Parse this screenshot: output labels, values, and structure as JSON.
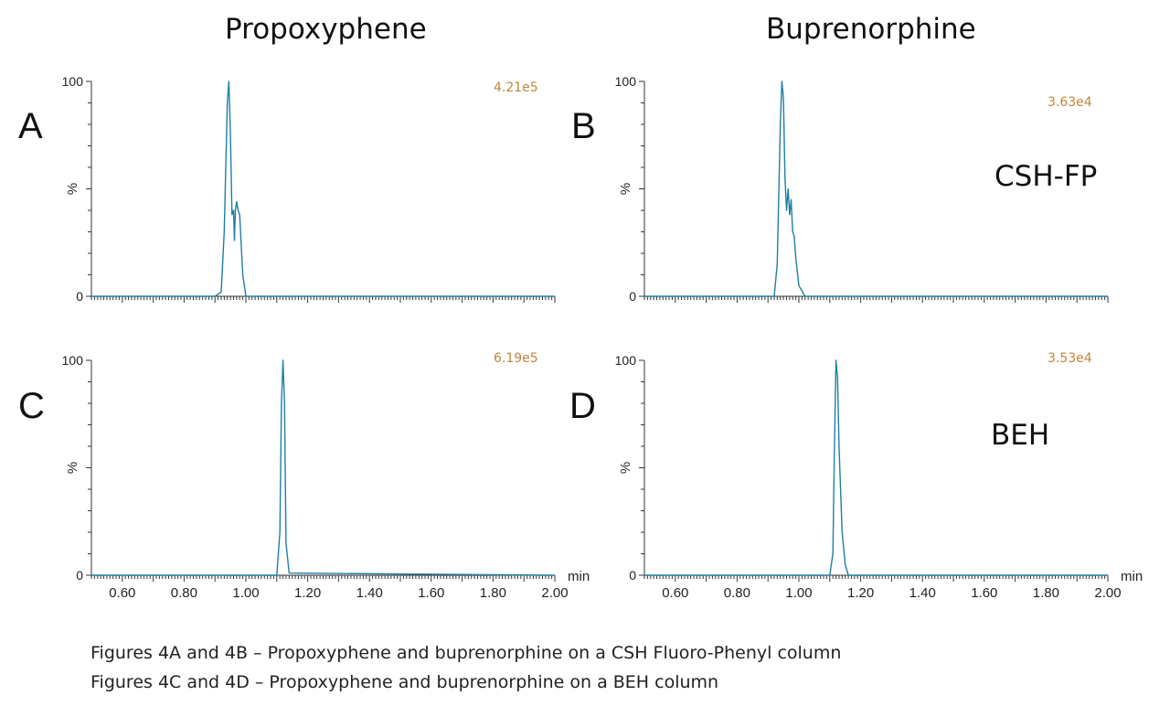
{
  "titles": {
    "left": "Propoxyphene",
    "right": "Buprenorphine"
  },
  "panel_letters": {
    "A": "A",
    "B": "B",
    "C": "C",
    "D": "D"
  },
  "column_labels": {
    "top": "CSH-FP",
    "bottom": "BEH"
  },
  "scales": {
    "A": "4.21e5",
    "B": "3.63e4",
    "C": "6.19e5",
    "D": "3.53e4"
  },
  "captions": [
    "Figures 4A and 4B – Propoxyphene and buprenorphine on a CSH Fluoro-Phenyl column",
    "Figures 4C and 4D – Propoxyphene and buprenorphine on a BEH column"
  ],
  "axis": {
    "y_top": "100",
    "y_mid": "%",
    "y_bottom": "0",
    "x_unit": "min",
    "x_ticks": [
      "0.60",
      "0.80",
      "1.00",
      "1.20",
      "1.40",
      "1.60",
      "1.80",
      "2.00"
    ]
  },
  "colors": {
    "trace": "#1f7fa3",
    "axis": "#333333",
    "scale": "#c0853a"
  },
  "chart_data": [
    {
      "type": "line",
      "panel": "A",
      "title": "Propoxyphene",
      "column": "CSH-FP",
      "xlabel": "min",
      "ylabel": "%",
      "xlim": [
        0.5,
        2.0
      ],
      "ylim": [
        0,
        100
      ],
      "intensity": "4.21e5",
      "x": [
        0.5,
        0.9,
        0.92,
        0.93,
        0.94,
        0.945,
        0.95,
        0.955,
        0.96,
        0.963,
        0.966,
        0.97,
        0.975,
        0.98,
        0.99,
        1.0,
        2.0
      ],
      "y": [
        0,
        0,
        2,
        30,
        90,
        100,
        75,
        38,
        40,
        26,
        40,
        44,
        40,
        38,
        10,
        0,
        0
      ]
    },
    {
      "type": "line",
      "panel": "B",
      "title": "Buprenorphine",
      "column": "CSH-FP",
      "xlabel": "min",
      "ylabel": "%",
      "xlim": [
        0.5,
        2.0
      ],
      "ylim": [
        0,
        100
      ],
      "intensity": "3.63e4",
      "x": [
        0.5,
        0.92,
        0.93,
        0.94,
        0.945,
        0.95,
        0.955,
        0.96,
        0.965,
        0.97,
        0.975,
        0.98,
        0.985,
        0.99,
        1.0,
        1.02,
        2.0
      ],
      "y": [
        0,
        0,
        15,
        80,
        100,
        92,
        55,
        40,
        50,
        38,
        45,
        30,
        28,
        18,
        5,
        0,
        0
      ]
    },
    {
      "type": "line",
      "panel": "C",
      "title": "Propoxyphene",
      "column": "BEH",
      "xlabel": "min",
      "ylabel": "%",
      "xlim": [
        0.5,
        2.0
      ],
      "ylim": [
        0,
        100
      ],
      "intensity": "6.19e5",
      "x": [
        0.5,
        1.1,
        1.11,
        1.115,
        1.12,
        1.125,
        1.13,
        1.14,
        2.0
      ],
      "y": [
        0,
        0,
        20,
        80,
        100,
        80,
        15,
        1,
        0
      ]
    },
    {
      "type": "line",
      "panel": "D",
      "title": "Buprenorphine",
      "column": "BEH",
      "xlabel": "min",
      "ylabel": "%",
      "xlim": [
        0.5,
        2.0
      ],
      "ylim": [
        0,
        100
      ],
      "intensity": "3.53e4",
      "x": [
        0.5,
        1.1,
        1.11,
        1.115,
        1.12,
        1.125,
        1.13,
        1.14,
        1.15,
        1.16,
        2.0
      ],
      "y": [
        0,
        0,
        10,
        60,
        100,
        92,
        60,
        20,
        5,
        0,
        0
      ]
    }
  ]
}
